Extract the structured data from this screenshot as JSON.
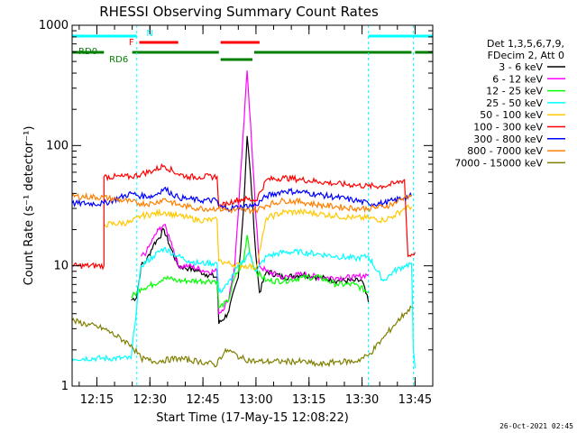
{
  "chart_data": {
    "type": "line",
    "title": "RHESSI Observing Summary Count Rates",
    "xlabel": "Start Time (17-May-15 12:08:22)",
    "ylabel": "Count Rate (s⁻¹ detector⁻¹)",
    "yscale": "log",
    "ylim": [
      1,
      1000
    ],
    "y_ticks": [
      {
        "v": 1,
        "label": "1"
      },
      {
        "v": 10,
        "label": "10"
      },
      {
        "v": 100,
        "label": "100"
      },
      {
        "v": 1000,
        "label": "1000"
      }
    ],
    "xlim_minutes": [
      0,
      102
    ],
    "x_ticks": [
      {
        "m": 7,
        "label": "12:15"
      },
      {
        "m": 22,
        "label": "12:30"
      },
      {
        "m": 37,
        "label": "12:45"
      },
      {
        "m": 52,
        "label": "13:00"
      },
      {
        "m": 67,
        "label": "13:15"
      },
      {
        "m": 82,
        "label": "13:30"
      },
      {
        "m": 97,
        "label": "13:45"
      }
    ],
    "grid": false,
    "legend_position": "right",
    "legend_header": [
      "Det 1,3,5,6,7,9,",
      "FDecim 2, Att 0"
    ],
    "night_boundaries_minutes": [
      18.3,
      83.8
    ],
    "saa_boundaries_minutes": [
      96.5
    ],
    "flags": [
      {
        "label": "N",
        "color": "#00ffff",
        "segments": [
          [
            0,
            18.3
          ],
          [
            83.8,
            102
          ]
        ]
      },
      {
        "label": "F",
        "color": "#ff0000",
        "segments": [
          [
            19,
            30
          ],
          [
            42,
            53
          ]
        ]
      },
      {
        "label": "RD0",
        "color": "#007f00",
        "segments": [
          [
            0,
            9
          ],
          [
            17,
            41.5
          ],
          [
            51.5,
            96
          ],
          [
            97,
            102
          ]
        ]
      },
      {
        "label": "RD6",
        "color": "#007f00",
        "segments": [
          [
            42,
            51
          ]
        ]
      }
    ],
    "series": [
      {
        "name": "3 - 6 keV",
        "color": "#000000",
        "points": [
          [
            16.7,
            5.2
          ],
          [
            18.3,
            5.5
          ],
          [
            19.5,
            10
          ],
          [
            21,
            11
          ],
          [
            23,
            15
          ],
          [
            24.5,
            17
          ],
          [
            26,
            20
          ],
          [
            27.5,
            15
          ],
          [
            30,
            10
          ],
          [
            33,
            9.5
          ],
          [
            36,
            9
          ],
          [
            38,
            8.5
          ],
          [
            41,
            8
          ],
          [
            41.5,
            3.3
          ],
          [
            44,
            4
          ],
          [
            47,
            8
          ],
          [
            48.5,
            30
          ],
          [
            49.5,
            120
          ],
          [
            50.5,
            55
          ],
          [
            52,
            12
          ],
          [
            53,
            6
          ],
          [
            55,
            9
          ],
          [
            60,
            8
          ],
          [
            65,
            8.5
          ],
          [
            70,
            8
          ],
          [
            75,
            7.5
          ],
          [
            80,
            7.5
          ],
          [
            82,
            7.5
          ],
          [
            83.8,
            5
          ]
        ]
      },
      {
        "name": "6 - 12 keV",
        "color": "#ff00ff",
        "points": [
          [
            19.5,
            12
          ],
          [
            21,
            13
          ],
          [
            23,
            17
          ],
          [
            24.5,
            20
          ],
          [
            26,
            22
          ],
          [
            28,
            16
          ],
          [
            30,
            10
          ],
          [
            33,
            10
          ],
          [
            38,
            9
          ],
          [
            41,
            9
          ],
          [
            41.5,
            4
          ],
          [
            44,
            5
          ],
          [
            46,
            10
          ],
          [
            48,
            80
          ],
          [
            49.5,
            420
          ],
          [
            50.5,
            150
          ],
          [
            52,
            25
          ],
          [
            53,
            10
          ],
          [
            55,
            9
          ],
          [
            60,
            8
          ],
          [
            65,
            8.5
          ],
          [
            70,
            8
          ],
          [
            75,
            8
          ],
          [
            80,
            8
          ],
          [
            83.8,
            8.5
          ]
        ]
      },
      {
        "name": "12 - 25 keV",
        "color": "#00ff00",
        "points": [
          [
            16.7,
            5.5
          ],
          [
            18.3,
            6
          ],
          [
            19.5,
            6.5
          ],
          [
            23,
            7
          ],
          [
            26,
            8
          ],
          [
            30,
            7.5
          ],
          [
            33,
            7.5
          ],
          [
            36,
            7.5
          ],
          [
            38,
            7.5
          ],
          [
            41,
            7.5
          ],
          [
            41.5,
            4.5
          ],
          [
            44,
            5
          ],
          [
            46,
            8
          ],
          [
            48.5,
            11
          ],
          [
            49.5,
            18
          ],
          [
            50.5,
            12
          ],
          [
            52,
            9
          ],
          [
            55,
            7.5
          ],
          [
            60,
            7.5
          ],
          [
            65,
            8
          ],
          [
            70,
            8
          ],
          [
            75,
            7
          ],
          [
            80,
            7
          ],
          [
            83.8,
            6
          ]
        ]
      },
      {
        "name": "25 - 50 keV",
        "color": "#00ffff",
        "points": [
          [
            0,
            1.7
          ],
          [
            9,
            1.7
          ],
          [
            16.7,
            1.7
          ],
          [
            19.5,
            10
          ],
          [
            23,
            12
          ],
          [
            26,
            14
          ],
          [
            30,
            12
          ],
          [
            33,
            11
          ],
          [
            36,
            10.5
          ],
          [
            38,
            10.5
          ],
          [
            41,
            10.5
          ],
          [
            41.5,
            6
          ],
          [
            44,
            7
          ],
          [
            46,
            9
          ],
          [
            48.5,
            11
          ],
          [
            50,
            13
          ],
          [
            52,
            9
          ],
          [
            55,
            12
          ],
          [
            60,
            13
          ],
          [
            65,
            13
          ],
          [
            70,
            12.5
          ],
          [
            75,
            12
          ],
          [
            80,
            11.5
          ],
          [
            83.8,
            12
          ],
          [
            88,
            7.5
          ],
          [
            91,
            9
          ],
          [
            94,
            10
          ],
          [
            96,
            10.5
          ],
          [
            96.5,
            2
          ],
          [
            97,
            1.4
          ]
        ]
      },
      {
        "name": "50 - 100 keV",
        "color": "#ffc800",
        "points": [
          [
            9,
            22
          ],
          [
            16.7,
            23
          ],
          [
            19.5,
            26
          ],
          [
            23,
            27
          ],
          [
            26,
            28
          ],
          [
            30,
            26
          ],
          [
            33,
            25
          ],
          [
            36,
            24
          ],
          [
            41,
            24
          ],
          [
            41.5,
            11
          ],
          [
            44,
            10.5
          ],
          [
            48,
            10
          ],
          [
            50,
            10
          ],
          [
            52,
            9.5
          ],
          [
            55,
            25
          ],
          [
            60,
            28
          ],
          [
            65,
            28
          ],
          [
            70,
            27
          ],
          [
            75,
            26
          ],
          [
            80,
            25
          ],
          [
            83.8,
            25
          ],
          [
            88,
            24
          ],
          [
            91,
            26
          ],
          [
            94,
            30
          ],
          [
            96,
            31
          ]
        ]
      },
      {
        "name": "100 - 300 keV",
        "color": "#ff0000",
        "points": [
          [
            0,
            10
          ],
          [
            9,
            10
          ],
          [
            9,
            55
          ],
          [
            16.7,
            55
          ],
          [
            19.5,
            58
          ],
          [
            23,
            62
          ],
          [
            26,
            68
          ],
          [
            30,
            58
          ],
          [
            33,
            55
          ],
          [
            36,
            55
          ],
          [
            41,
            55
          ],
          [
            41.5,
            31
          ],
          [
            44,
            33
          ],
          [
            46,
            35
          ],
          [
            48.5,
            36
          ],
          [
            52,
            35
          ],
          [
            55,
            52
          ],
          [
            60,
            54
          ],
          [
            65,
            52
          ],
          [
            70,
            50
          ],
          [
            75,
            48
          ],
          [
            80,
            47
          ],
          [
            83.8,
            46
          ],
          [
            88,
            46
          ],
          [
            91,
            48
          ],
          [
            94,
            52
          ],
          [
            95,
            12
          ],
          [
            97,
            13
          ]
        ]
      },
      {
        "name": "300 - 800 keV",
        "color": "#0000ff",
        "points": [
          [
            0,
            33
          ],
          [
            9,
            33
          ],
          [
            16.7,
            40
          ],
          [
            19.5,
            38
          ],
          [
            23,
            38
          ],
          [
            26,
            44
          ],
          [
            30,
            37
          ],
          [
            33,
            36
          ],
          [
            36,
            35
          ],
          [
            41,
            35
          ],
          [
            41.5,
            31
          ],
          [
            44,
            30
          ],
          [
            48,
            31
          ],
          [
            52,
            32
          ],
          [
            55,
            38
          ],
          [
            60,
            42
          ],
          [
            65,
            41
          ],
          [
            70,
            39
          ],
          [
            75,
            37
          ],
          [
            80,
            35
          ],
          [
            83.8,
            33
          ],
          [
            88,
            33
          ],
          [
            91,
            35
          ],
          [
            94,
            37
          ],
          [
            96,
            38
          ]
        ]
      },
      {
        "name": "800 - 7000 keV",
        "color": "#ff7f00",
        "points": [
          [
            0,
            38
          ],
          [
            9,
            37
          ],
          [
            16.7,
            34
          ],
          [
            19.5,
            33
          ],
          [
            23,
            33
          ],
          [
            26,
            36
          ],
          [
            30,
            32
          ],
          [
            33,
            31
          ],
          [
            36,
            30
          ],
          [
            41,
            30
          ],
          [
            44,
            29
          ],
          [
            48,
            29
          ],
          [
            52,
            29
          ],
          [
            55,
            32
          ],
          [
            60,
            35
          ],
          [
            65,
            34
          ],
          [
            70,
            32
          ],
          [
            75,
            31
          ],
          [
            80,
            30
          ],
          [
            83.8,
            30
          ],
          [
            88,
            31
          ],
          [
            91,
            33
          ],
          [
            94,
            37
          ],
          [
            96,
            39
          ]
        ]
      },
      {
        "name": "7000 - 15000 keV",
        "color": "#7f7f00",
        "points": [
          [
            0,
            3.5
          ],
          [
            9,
            3
          ],
          [
            16.7,
            2.2
          ],
          [
            19.5,
            1.7
          ],
          [
            23,
            1.6
          ],
          [
            30,
            1.7
          ],
          [
            36,
            1.6
          ],
          [
            41,
            1.5
          ],
          [
            41.5,
            1.7
          ],
          [
            44,
            2
          ],
          [
            48,
            1.7
          ],
          [
            52,
            1.6
          ],
          [
            55,
            1.6
          ],
          [
            60,
            1.6
          ],
          [
            65,
            1.6
          ],
          [
            70,
            1.5
          ],
          [
            75,
            1.6
          ],
          [
            80,
            1.6
          ],
          [
            83.8,
            1.8
          ],
          [
            88,
            2.5
          ],
          [
            91,
            3.2
          ],
          [
            94,
            4
          ],
          [
            96,
            4.5
          ]
        ]
      }
    ],
    "footer_timestamp": "26-Oct-2021 02:45"
  }
}
